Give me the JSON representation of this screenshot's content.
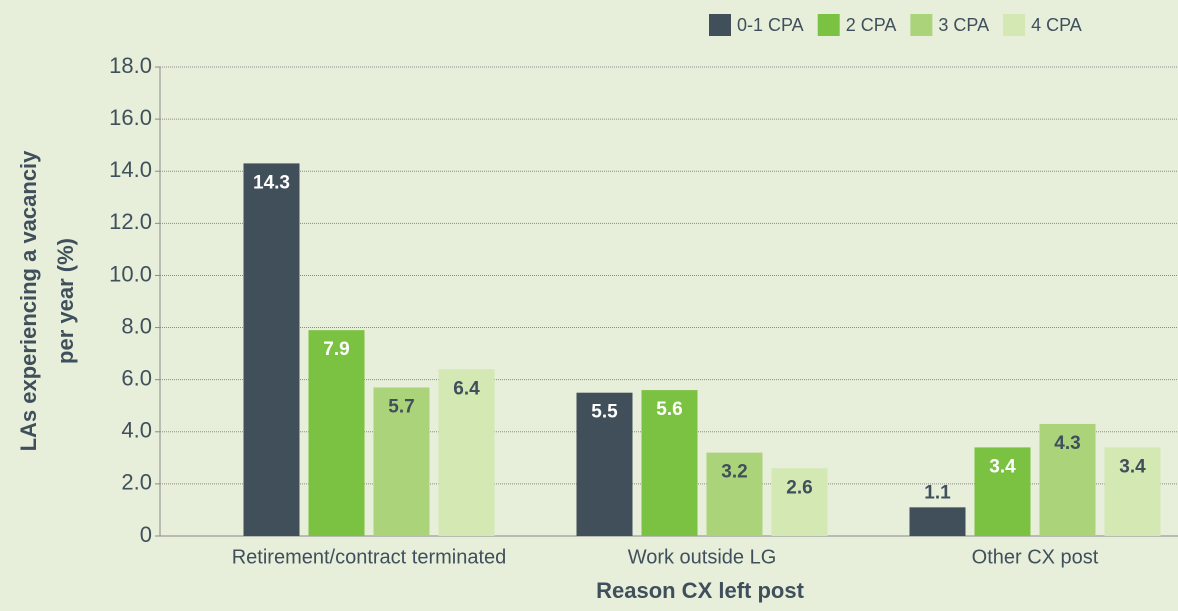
{
  "chart_data": {
    "type": "bar",
    "xlabel": "Reason CX left post",
    "ylabel": [
      "LAs experiencing a vacanciy",
      "per year (%)"
    ],
    "categories": [
      "Retirement/contract terminated",
      "Work outside LG",
      "Other CX post"
    ],
    "series": [
      {
        "name": "0-1 CPA",
        "color": "#414f5b",
        "values": [
          14.3,
          5.5,
          1.1
        ]
      },
      {
        "name": "2 CPA",
        "color": "#7cc242",
        "values": [
          7.9,
          5.6,
          3.4
        ]
      },
      {
        "name": "3 CPA",
        "color": "#abd47a",
        "values": [
          5.7,
          3.2,
          4.3
        ]
      },
      {
        "name": "4 CPA",
        "color": "#d3e8b2",
        "values": [
          6.4,
          2.6,
          3.4
        ]
      }
    ],
    "ylim": [
      0,
      18
    ],
    "yticks": [
      0,
      {
        "value": 2,
        "label": "2.0"
      },
      {
        "value": 4,
        "label": "4.0"
      },
      {
        "value": 6,
        "label": "6.0"
      },
      {
        "value": 8,
        "label": "8.0"
      },
      {
        "value": 10,
        "label": "10.0"
      },
      {
        "value": 12,
        "label": "12.0"
      },
      {
        "value": 14,
        "label": "14.0"
      },
      {
        "value": 16,
        "label": "16.0"
      },
      {
        "value": 18,
        "label": "18.0"
      }
    ],
    "grid": true,
    "legend": "top-right"
  }
}
